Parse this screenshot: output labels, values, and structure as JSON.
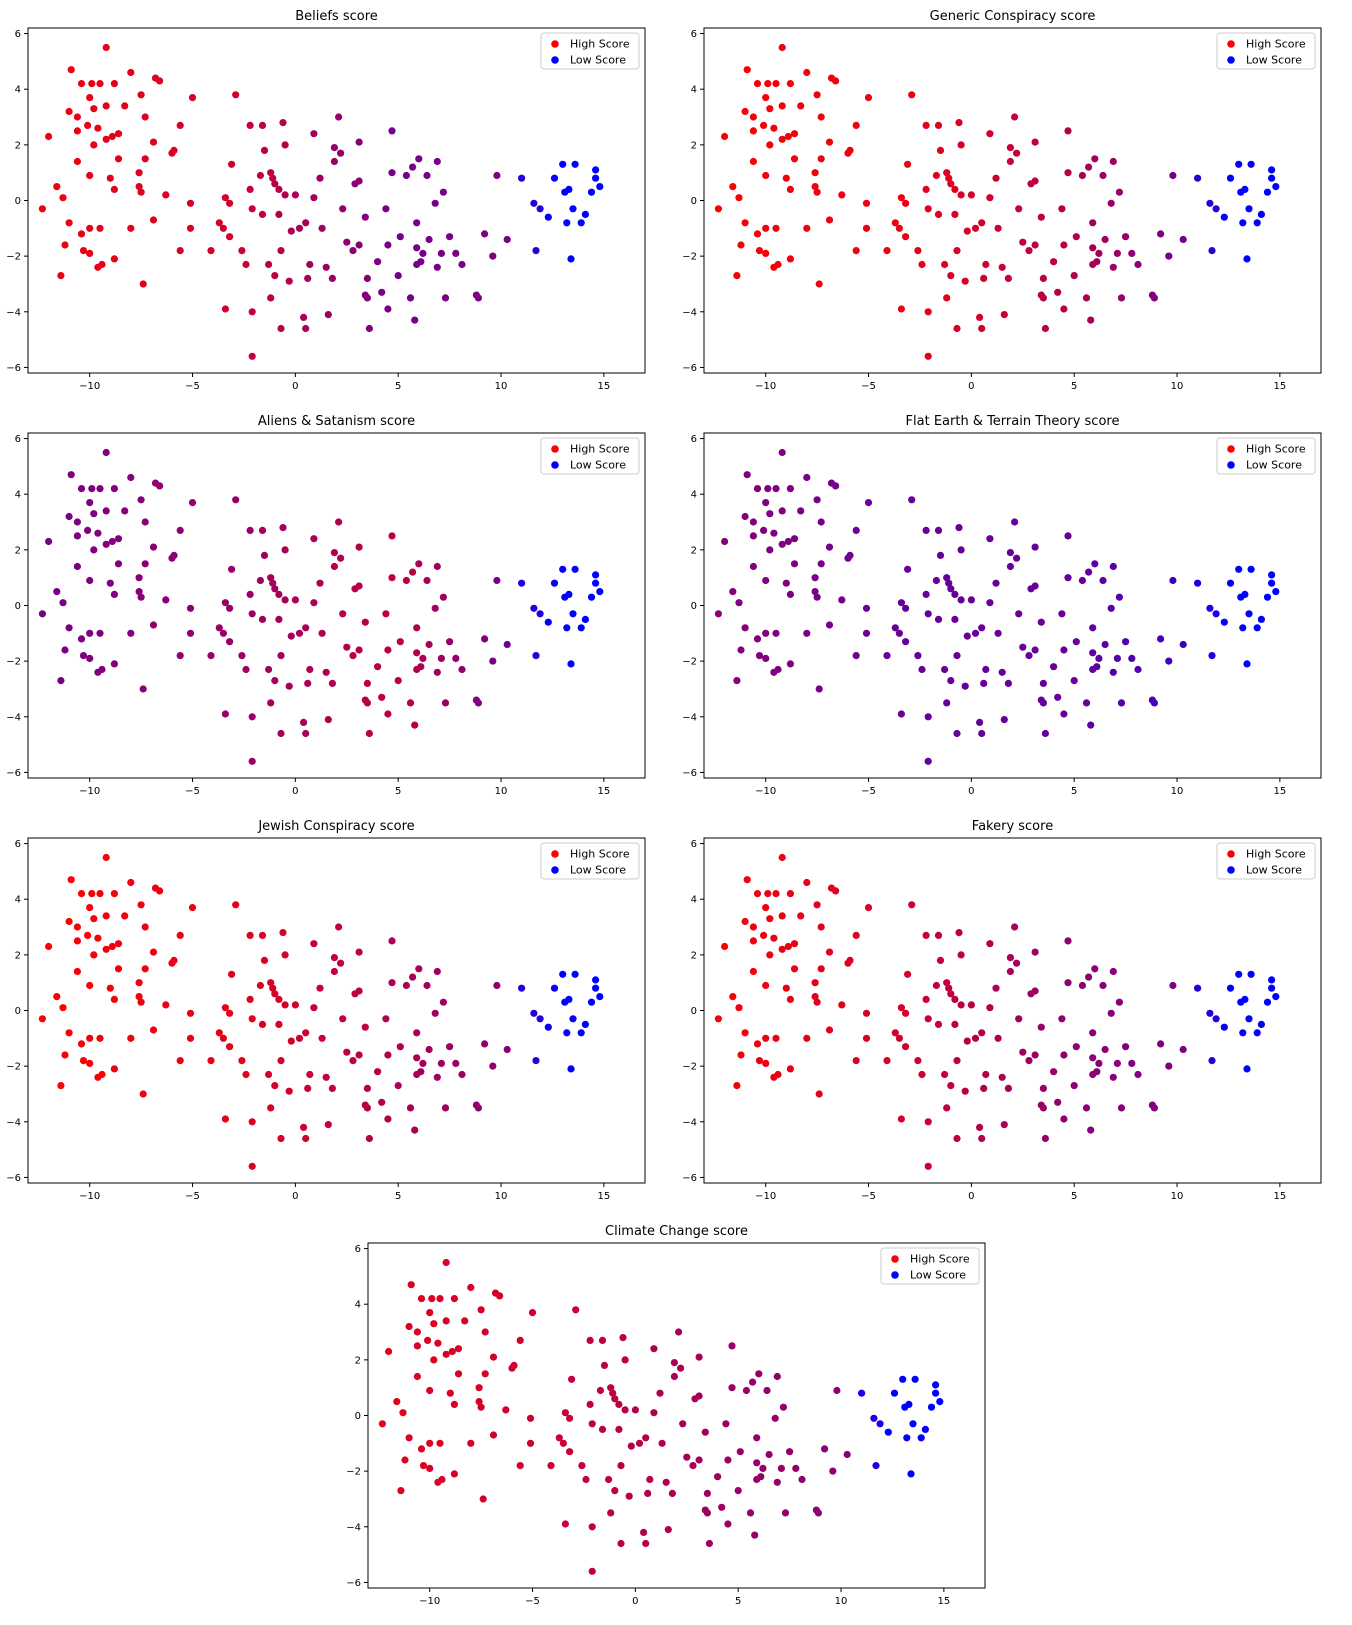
{
  "legend_labels": {
    "high": "High Score",
    "low": "Low Score"
  },
  "colors": {
    "high": "#ff0000",
    "low": "#0000ff",
    "axis": "#000000",
    "legend_border": "#cccccc"
  },
  "points": [
    [
      -9.2,
      5.5
    ],
    [
      -10.9,
      4.7
    ],
    [
      -8.0,
      4.6
    ],
    [
      -6.8,
      4.4
    ],
    [
      -6.6,
      4.3
    ],
    [
      -10.4,
      4.2
    ],
    [
      -9.9,
      4.2
    ],
    [
      -9.5,
      4.2
    ],
    [
      -8.8,
      4.2
    ],
    [
      -7.5,
      3.8
    ],
    [
      -5.0,
      3.7
    ],
    [
      -10.0,
      3.7
    ],
    [
      -9.2,
      3.4
    ],
    [
      -9.8,
      3.3
    ],
    [
      -8.3,
      3.4
    ],
    [
      -11.0,
      3.2
    ],
    [
      -7.3,
      3.0
    ],
    [
      -10.6,
      3.0
    ],
    [
      -10.1,
      2.7
    ],
    [
      -9.6,
      2.6
    ],
    [
      -5.6,
      2.7
    ],
    [
      -8.6,
      2.4
    ],
    [
      -10.6,
      2.5
    ],
    [
      -8.9,
      2.3
    ],
    [
      -9.2,
      2.2
    ],
    [
      -12.0,
      2.3
    ],
    [
      -6.9,
      2.1
    ],
    [
      -9.8,
      2.0
    ],
    [
      -5.9,
      1.8
    ],
    [
      -6.0,
      1.7
    ],
    [
      -10.6,
      1.4
    ],
    [
      -8.6,
      1.5
    ],
    [
      -7.3,
      1.5
    ],
    [
      -7.6,
      1.0
    ],
    [
      -9.0,
      0.8
    ],
    [
      -10.0,
      0.9
    ],
    [
      -8.8,
      0.4
    ],
    [
      -11.6,
      0.5
    ],
    [
      -7.6,
      0.5
    ],
    [
      -7.5,
      0.3
    ],
    [
      -6.3,
      0.2
    ],
    [
      -11.3,
      0.1
    ],
    [
      -12.3,
      -0.3
    ],
    [
      -5.1,
      -0.1
    ],
    [
      -6.9,
      -0.7
    ],
    [
      -8.0,
      -1.0
    ],
    [
      -10.0,
      -1.0
    ],
    [
      -9.5,
      -1.0
    ],
    [
      -11.0,
      -0.8
    ],
    [
      -5.1,
      -1.0
    ],
    [
      -10.4,
      -1.2
    ],
    [
      -11.2,
      -1.6
    ],
    [
      -5.6,
      -1.8
    ],
    [
      -10.3,
      -1.8
    ],
    [
      -10.0,
      -1.9
    ],
    [
      -8.8,
      -2.1
    ],
    [
      -9.4,
      -2.3
    ],
    [
      -9.6,
      -2.4
    ],
    [
      -11.4,
      -2.7
    ],
    [
      -7.4,
      -3.0
    ],
    [
      -2.9,
      3.8
    ],
    [
      -2.2,
      2.7
    ],
    [
      -1.6,
      2.7
    ],
    [
      -0.6,
      2.8
    ],
    [
      2.1,
      3.0
    ],
    [
      0.9,
      2.4
    ],
    [
      3.1,
      2.1
    ],
    [
      4.7,
      2.5
    ],
    [
      -0.5,
      2.0
    ],
    [
      -1.5,
      1.8
    ],
    [
      -3.1,
      1.3
    ],
    [
      1.9,
      1.9
    ],
    [
      1.9,
      1.4
    ],
    [
      -1.2,
      1.0
    ],
    [
      -1.7,
      0.9
    ],
    [
      -1.1,
      0.8
    ],
    [
      -1.0,
      0.6
    ],
    [
      0.0,
      0.2
    ],
    [
      -0.8,
      0.4
    ],
    [
      -0.5,
      0.2
    ],
    [
      -3.4,
      0.1
    ],
    [
      -3.2,
      -0.1
    ],
    [
      -2.1,
      -0.3
    ],
    [
      -1.6,
      -0.5
    ],
    [
      -0.8,
      -0.5
    ],
    [
      0.5,
      -0.8
    ],
    [
      0.2,
      -1.0
    ],
    [
      -3.5,
      -1.0
    ],
    [
      -4.1,
      -1.8
    ],
    [
      -3.2,
      -1.3
    ],
    [
      -2.6,
      -1.8
    ],
    [
      -0.7,
      -1.8
    ],
    [
      -1.3,
      -2.3
    ],
    [
      -2.4,
      -2.3
    ],
    [
      -1.0,
      -2.7
    ],
    [
      -0.3,
      -2.9
    ],
    [
      0.6,
      -2.8
    ],
    [
      0.7,
      -2.3
    ],
    [
      1.5,
      -2.4
    ],
    [
      1.8,
      -2.8
    ],
    [
      -3.4,
      -3.9
    ],
    [
      -2.1,
      -4.0
    ],
    [
      -1.2,
      -3.5
    ],
    [
      -0.7,
      -4.6
    ],
    [
      0.4,
      -4.2
    ],
    [
      0.5,
      -4.6
    ],
    [
      1.6,
      -4.1
    ],
    [
      -2.1,
      -5.6
    ],
    [
      2.3,
      -0.3
    ],
    [
      2.9,
      0.6
    ],
    [
      3.1,
      0.7
    ],
    [
      3.4,
      -0.6
    ],
    [
      4.4,
      -0.3
    ],
    [
      3.1,
      -1.6
    ],
    [
      2.5,
      -1.5
    ],
    [
      3.5,
      -2.8
    ],
    [
      3.4,
      -3.4
    ],
    [
      3.5,
      -3.5
    ],
    [
      4.0,
      -2.2
    ],
    [
      4.2,
      -3.3
    ],
    [
      5.0,
      -2.7
    ],
    [
      4.5,
      -3.9
    ],
    [
      3.6,
      -4.6
    ],
    [
      2.8,
      -1.8
    ],
    [
      5.1,
      -1.3
    ],
    [
      4.7,
      1.0
    ],
    [
      5.7,
      1.2
    ],
    [
      6.0,
      1.5
    ],
    [
      5.4,
      0.9
    ],
    [
      6.4,
      0.9
    ],
    [
      6.9,
      1.4
    ],
    [
      5.9,
      -0.8
    ],
    [
      6.8,
      -0.1
    ],
    [
      5.9,
      -1.7
    ],
    [
      6.1,
      -2.2
    ],
    [
      5.6,
      -3.5
    ],
    [
      5.8,
      -4.3
    ],
    [
      5.9,
      -2.3
    ],
    [
      6.2,
      -1.9
    ],
    [
      7.1,
      -1.9
    ],
    [
      6.9,
      -2.4
    ],
    [
      7.3,
      -3.5
    ],
    [
      7.5,
      -1.3
    ],
    [
      7.8,
      -1.9
    ],
    [
      8.1,
      -2.3
    ],
    [
      8.8,
      -3.4
    ],
    [
      8.9,
      -3.5
    ],
    [
      9.2,
      -1.2
    ],
    [
      9.6,
      -2.0
    ],
    [
      9.8,
      0.9
    ],
    [
      10.3,
      -1.4
    ],
    [
      11.0,
      0.8
    ],
    [
      11.6,
      -0.1
    ],
    [
      11.9,
      -0.3
    ],
    [
      12.3,
      -0.6
    ],
    [
      11.7,
      -1.8
    ],
    [
      12.6,
      0.8
    ],
    [
      13.3,
      0.4
    ],
    [
      13.1,
      0.3
    ],
    [
      13.5,
      -0.3
    ],
    [
      13.2,
      -0.8
    ],
    [
      13.0,
      1.3
    ],
    [
      13.6,
      1.3
    ],
    [
      14.1,
      -0.5
    ],
    [
      14.4,
      0.3
    ],
    [
      14.6,
      0.8
    ],
    [
      14.6,
      1.1
    ],
    [
      14.8,
      0.5
    ],
    [
      13.9,
      -0.8
    ],
    [
      13.4,
      -2.1
    ],
    [
      7.2,
      0.3
    ],
    [
      6.5,
      -1.4
    ],
    [
      4.5,
      -1.6
    ],
    [
      2.2,
      1.7
    ],
    [
      1.2,
      0.8
    ],
    [
      0.9,
      0.1
    ],
    [
      1.3,
      -1.0
    ],
    [
      -0.2,
      -1.1
    ],
    [
      -2.2,
      0.4
    ],
    [
      -3.7,
      -0.8
    ]
  ],
  "charts": [
    {
      "title": "Beliefs score",
      "colors": [
        0.95,
        0.82,
        0.45,
        0.5,
        0.3
      ],
      "xticks": [
        "−10",
        "−5",
        "0",
        "5",
        "10",
        "15"
      ],
      "yticks": [
        "6",
        "4",
        "2",
        "0",
        "−2",
        "−4",
        "−6"
      ]
    },
    {
      "title": "Generic Conspiracy score",
      "colors": [
        0.98,
        0.92,
        0.7,
        0.45,
        0.35
      ],
      "xticks": [
        "−10",
        "−5",
        "0",
        "5",
        "10",
        "15"
      ],
      "yticks": [
        "6",
        "4",
        "2",
        "0",
        "−2",
        "−4",
        "−6"
      ]
    },
    {
      "title": "Aliens & Satanism score",
      "colors": [
        0.45,
        0.6,
        0.75,
        0.45,
        0.25
      ],
      "xticks": [
        "−10",
        "−5",
        "0",
        "5",
        "10",
        "15"
      ],
      "yticks": [
        "6",
        "4",
        "2",
        "0",
        "−2",
        "−4",
        "−6"
      ]
    },
    {
      "title": "Flat Earth & Terrain Theory score",
      "colors": [
        0.55,
        0.4,
        0.4,
        0.25,
        0.2
      ],
      "xticks": [
        "−10",
        "−5",
        "0",
        "5",
        "10",
        "15"
      ],
      "yticks": [
        "6",
        "4",
        "2",
        "0",
        "−2",
        "−4",
        "−6"
      ]
    },
    {
      "title": "Jewish Conspiracy score",
      "colors": [
        1.0,
        0.9,
        0.68,
        0.55,
        0.3
      ],
      "xticks": [
        "−10",
        "−5",
        "0",
        "5",
        "10",
        "15"
      ],
      "yticks": [
        "6",
        "4",
        "2",
        "0",
        "−2",
        "−4",
        "−6"
      ]
    },
    {
      "title": "Fakery score",
      "colors": [
        0.98,
        0.82,
        0.55,
        0.5,
        0.3
      ],
      "xticks": [
        "−10",
        "−5",
        "0",
        "5",
        "10",
        "15"
      ],
      "yticks": [
        "6",
        "4",
        "2",
        "0",
        "−2",
        "−4",
        "−6"
      ]
    },
    {
      "title": "Climate Change score",
      "colors": [
        0.9,
        0.78,
        0.6,
        0.55,
        0.2
      ],
      "xticks": [
        "−10",
        "−5",
        "0",
        "5",
        "10",
        "15"
      ],
      "yticks": [
        "6",
        "4",
        "2",
        "0",
        "−2",
        "−4",
        "−6"
      ]
    }
  ],
  "chart_data": [
    {
      "type": "scatter",
      "title": "Beliefs score",
      "xlim": [
        -13,
        17
      ],
      "ylim": [
        -6.2,
        6.2
      ],
      "legend": [
        "High Score",
        "Low Score"
      ],
      "legend_position": "top-right"
    },
    {
      "type": "scatter",
      "title": "Generic Conspiracy score",
      "xlim": [
        -13,
        17
      ],
      "ylim": [
        -6.2,
        6.2
      ],
      "legend": [
        "High Score",
        "Low Score"
      ],
      "legend_position": "top-right"
    },
    {
      "type": "scatter",
      "title": "Aliens & Satanism score",
      "xlim": [
        -13,
        17
      ],
      "ylim": [
        -6.2,
        6.2
      ],
      "legend": [
        "High Score",
        "Low Score"
      ],
      "legend_position": "top-right"
    },
    {
      "type": "scatter",
      "title": "Flat Earth & Terrain Theory score",
      "xlim": [
        -13,
        17
      ],
      "ylim": [
        -6.2,
        6.2
      ],
      "legend": [
        "High Score",
        "Low Score"
      ],
      "legend_position": "top-right"
    },
    {
      "type": "scatter",
      "title": "Jewish Conspiracy score",
      "xlim": [
        -13,
        17
      ],
      "ylim": [
        -6.2,
        6.2
      ],
      "legend": [
        "High Score",
        "Low Score"
      ],
      "legend_position": "top-right"
    },
    {
      "type": "scatter",
      "title": "Fakery score",
      "xlim": [
        -13,
        17
      ],
      "ylim": [
        -6.2,
        6.2
      ],
      "legend": [
        "High Score",
        "Low Score"
      ],
      "legend_position": "top-right"
    },
    {
      "type": "scatter",
      "title": "Climate Change score",
      "xlim": [
        -13,
        17
      ],
      "ylim": [
        -6.2,
        6.2
      ],
      "legend": [
        "High Score",
        "Low Score"
      ],
      "legend_position": "top-right"
    }
  ]
}
